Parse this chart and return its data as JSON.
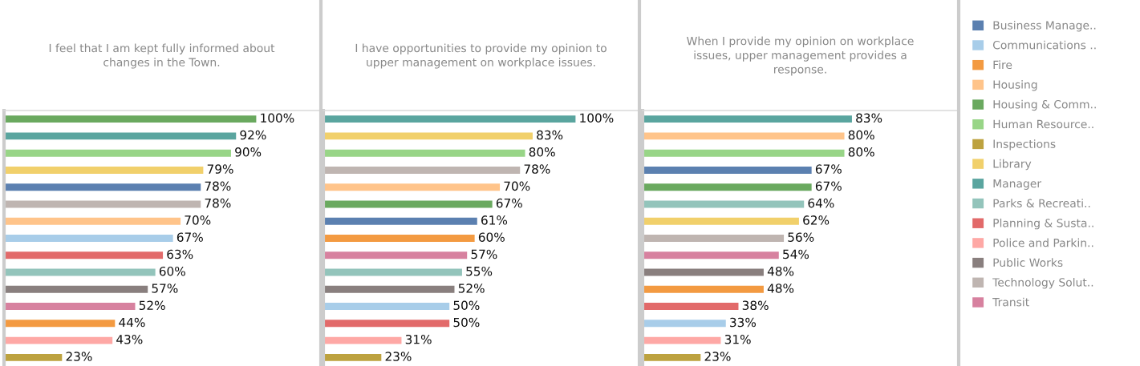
{
  "chart_data": [
    {
      "type": "bar",
      "orientation": "horizontal",
      "title": "I feel that I am kept fully informed about\nchanges in the Town.",
      "categories": [
        null,
        null,
        null,
        null,
        null,
        null,
        null,
        null,
        null,
        null,
        null,
        null,
        null,
        null,
        null
      ],
      "values": [
        100,
        92,
        90,
        79,
        78,
        78,
        70,
        67,
        63,
        60,
        57,
        52,
        44,
        43,
        23
      ],
      "value_labels": [
        "100%",
        "92%",
        "90%",
        "79%",
        "78%",
        "78%",
        "70%",
        "67%",
        "63%",
        "60%",
        "57%",
        "52%",
        "44%",
        "43%",
        "23%"
      ],
      "colors": [
        "#6aa95f",
        "#5aa59f",
        "#98d587",
        "#f1d06b",
        "#5b80b0",
        "#bfb5b1",
        "#ffc48a",
        "#a8cde9",
        "#e26a6a",
        "#93c4bb",
        "#897f7e",
        "#d7819f",
        "#f39a41",
        "#fea8a5",
        "#bda23f"
      ]
    },
    {
      "type": "bar",
      "orientation": "horizontal",
      "title": "I have opportunities to provide my opinion to\nupper management on workplace issues.",
      "categories": [
        null,
        null,
        null,
        null,
        null,
        null,
        null,
        null,
        null,
        null,
        null,
        null,
        null,
        null,
        null
      ],
      "values": [
        100,
        83,
        80,
        78,
        70,
        67,
        61,
        60,
        57,
        55,
        52,
        50,
        50,
        31,
        23
      ],
      "value_labels": [
        "100%",
        "83%",
        "80%",
        "78%",
        "70%",
        "67%",
        "61%",
        "60%",
        "57%",
        "55%",
        "52%",
        "50%",
        "50%",
        "31%",
        "23%"
      ],
      "colors": [
        "#5aa59f",
        "#f1d06b",
        "#98d587",
        "#bfb5b1",
        "#ffc48a",
        "#6aa95f",
        "#5b80b0",
        "#f39a41",
        "#d7819f",
        "#93c4bb",
        "#897f7e",
        "#a8cde9",
        "#e26a6a",
        "#fea8a5",
        "#bda23f"
      ]
    },
    {
      "type": "bar",
      "orientation": "horizontal",
      "title": "When I provide my opinion on workplace\nissues, upper management provides a\nresponse.",
      "categories": [
        null,
        null,
        null,
        null,
        null,
        null,
        null,
        null,
        null,
        null,
        null,
        null,
        null,
        null,
        null
      ],
      "values": [
        83,
        80,
        80,
        67,
        67,
        64,
        62,
        56,
        54,
        48,
        48,
        38,
        33,
        31,
        23
      ],
      "value_labels": [
        "83%",
        "80%",
        "80%",
        "67%",
        "67%",
        "64%",
        "62%",
        "56%",
        "54%",
        "48%",
        "48%",
        "38%",
        "33%",
        "31%",
        "23%"
      ],
      "colors": [
        "#5aa59f",
        "#ffc48a",
        "#98d587",
        "#5b80b0",
        "#6aa95f",
        "#93c4bb",
        "#f1d06b",
        "#bfb5b1",
        "#d7819f",
        "#897f7e",
        "#f39a41",
        "#e26a6a",
        "#a8cde9",
        "#fea8a5",
        "#bda23f"
      ]
    },
    {
      "type": "other",
      "categories": [
        "Business Manage..",
        "Communications ..",
        "Fire",
        "Housing",
        "Housing & Comm..",
        "Human Resource..",
        "Inspections",
        "Library",
        "Manager",
        "Parks & Recreati..",
        "Planning & Susta..",
        "Police and Parkin..",
        "Public Works",
        "Technology Solut..",
        "Transit"
      ],
      "colors": [
        "#5b80b0",
        "#a8cde9",
        "#f39a41",
        "#ffc48a",
        "#6aa95f",
        "#98d587",
        "#bda23f",
        "#f1d06b",
        "#5aa59f",
        "#93c4bb",
        "#e26a6a",
        "#fea8a5",
        "#897f7e",
        "#bfb5b1",
        "#d7819f"
      ]
    }
  ]
}
